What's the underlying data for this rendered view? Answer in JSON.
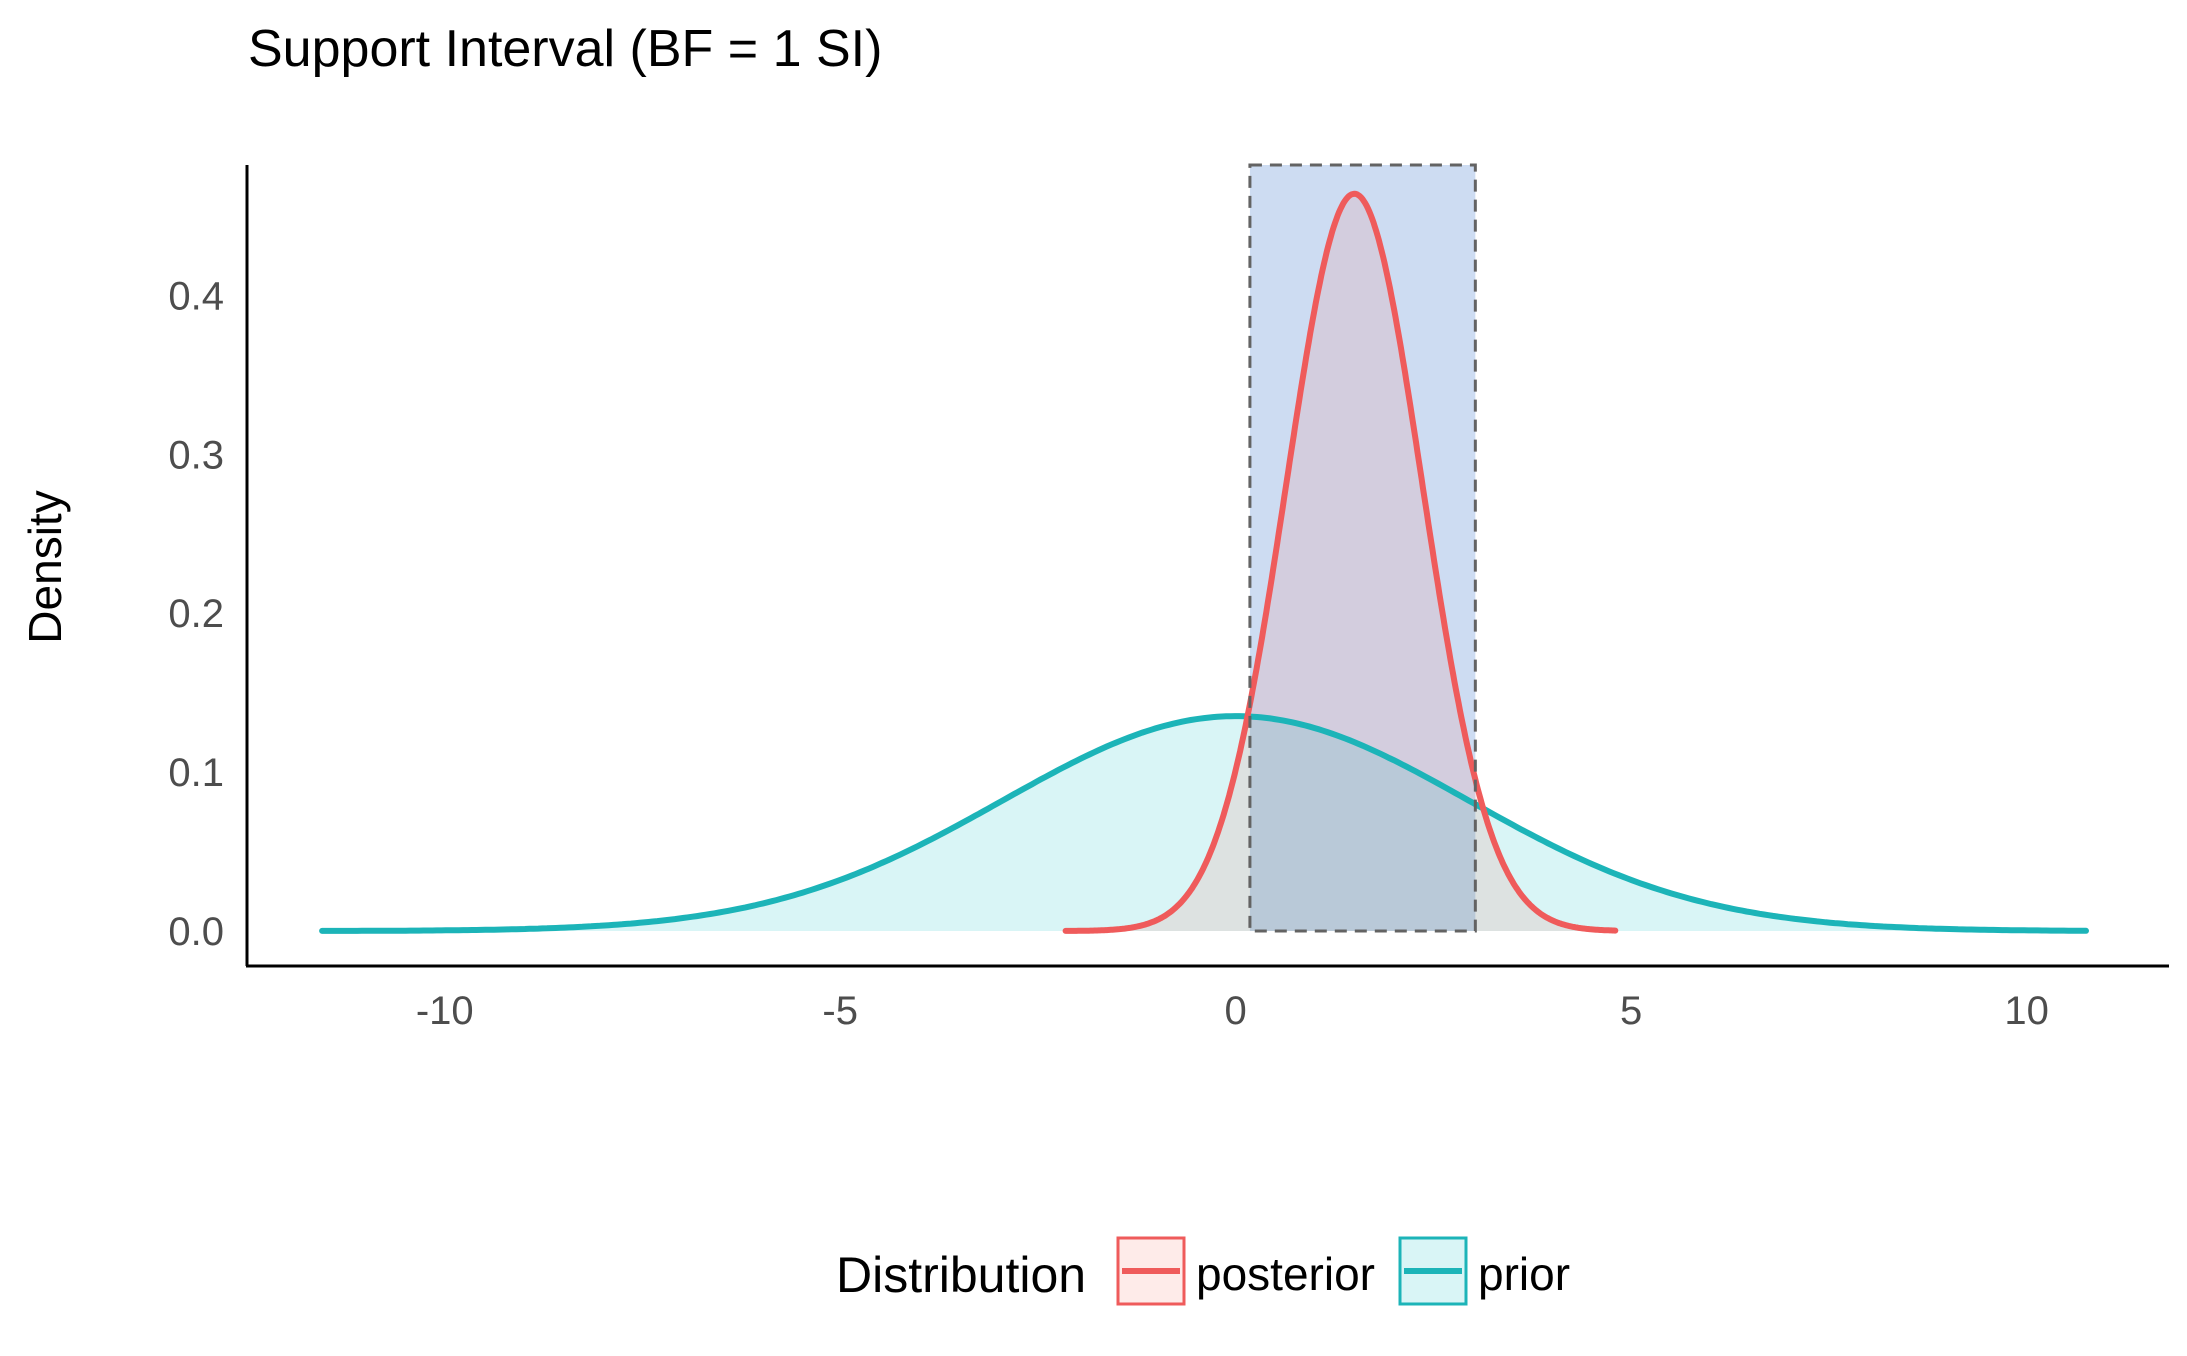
{
  "chart_data": {
    "type": "area",
    "title": "Support Interval (BF = 1 SI)",
    "xlabel": "",
    "ylabel": "Density",
    "xlim": [
      -12.5,
      11.8
    ],
    "ylim": [
      -0.022,
      0.482
    ],
    "x_ticks": [
      -10,
      -5,
      0,
      5,
      10
    ],
    "x_tick_labels": [
      "-10",
      "-5",
      "0",
      "5",
      "10"
    ],
    "y_ticks": [
      0.0,
      0.1,
      0.2,
      0.3,
      0.4
    ],
    "y_tick_labels": [
      "0.0",
      "0.1",
      "0.2",
      "0.3",
      "0.4"
    ],
    "grid": false,
    "legend": {
      "title": "Distribution",
      "position": "bottom",
      "entries": [
        "posterior",
        "prior"
      ]
    },
    "support_interval": {
      "lower": 0.18,
      "upper": 3.03,
      "fill_color": "#cddcf2",
      "border_color": "#636363"
    },
    "series": [
      {
        "name": "posterior",
        "color": "#ef5b5b",
        "fill": "#f8766d",
        "mean": 1.5,
        "sd": 0.86,
        "range": [
          -2.15,
          4.8
        ]
      },
      {
        "name": "prior",
        "color": "#1cb4b8",
        "fill": "#00bfc4",
        "mean": 0.0,
        "sd": 2.95,
        "range": [
          -11.55,
          10.75
        ]
      }
    ]
  }
}
